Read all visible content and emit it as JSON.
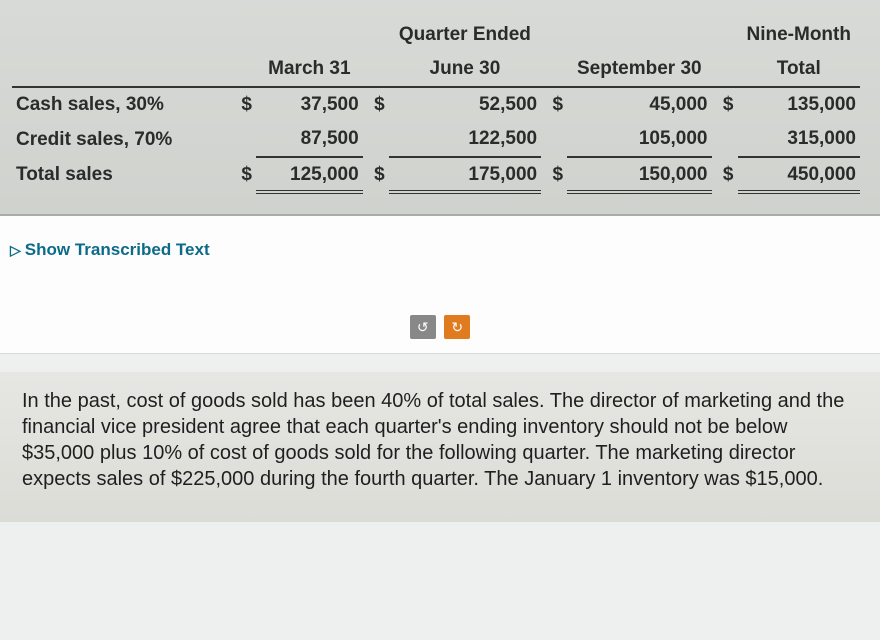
{
  "table": {
    "header_top": {
      "quarter_ended": "Quarter Ended",
      "nine_month": "Nine-Month"
    },
    "header_bottom": {
      "col1": "March 31",
      "col2": "June 30",
      "col3": "September 30",
      "col4": "Total"
    },
    "rows": {
      "cash": {
        "label": "Cash sales, 30%",
        "c1_sym": "$",
        "c1": "37,500",
        "c2_sym": "$",
        "c2": "52,500",
        "c3_sym": "$",
        "c3": "45,000",
        "c4_sym": "$",
        "c4": "135,000"
      },
      "credit": {
        "label": "Credit sales, 70%",
        "c1": "87,500",
        "c2": "122,500",
        "c3": "105,000",
        "c4": "315,000"
      },
      "total": {
        "label": "Total sales",
        "c1_sym": "$",
        "c1": "125,000",
        "c2_sym": "$",
        "c2": "175,000",
        "c3_sym": "$",
        "c3": "150,000",
        "c4_sym": "$",
        "c4": "450,000"
      }
    }
  },
  "link": {
    "label": "Show Transcribed Text"
  },
  "buttons": {
    "prev_glyph": "↺",
    "next_glyph": "↻"
  },
  "paragraph": {
    "text": "In the past, cost of goods sold has been 40% of total sales. The director of marketing and the financial vice president agree that each quarter's ending inventory should not be below $35,000 plus 10% of cost of goods sold for the following quarter. The marketing director expects sales of $225,000 during the fourth quarter. The January 1 inventory was $15,000."
  },
  "colors": {
    "table_bg_top": "#d8dad7",
    "table_bg_bottom": "#d0d2ce",
    "text_bg_top": "#e6e6e2",
    "text_bg_bottom": "#dcdcd7",
    "link_color": "#0d6b8a",
    "btn_gray": "#888888",
    "btn_orange": "#e07b1f",
    "border_dark": "#333333"
  }
}
